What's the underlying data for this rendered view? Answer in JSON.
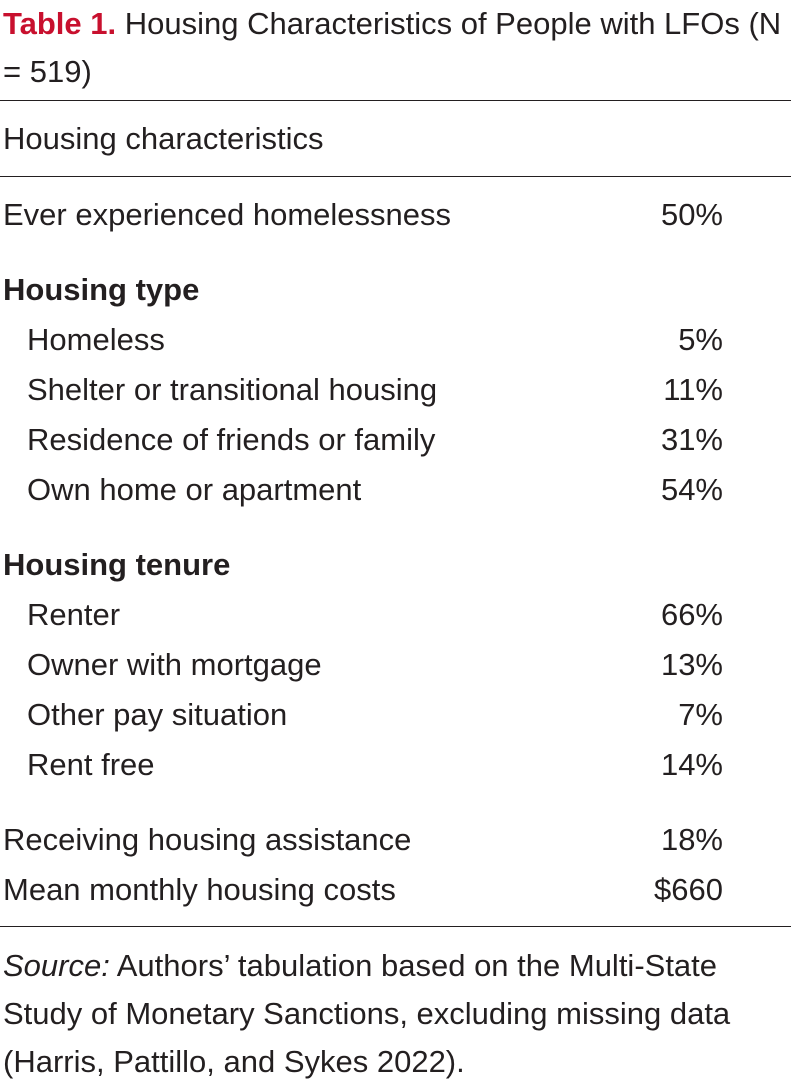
{
  "title": {
    "label": "Table 1.",
    "text": " Housing Characteristics of People with LFOs (N = 519)"
  },
  "table": {
    "header": "Housing characteristics",
    "rows": [
      {
        "label": "Ever experienced homelessness",
        "value": "50%"
      },
      {
        "label": "Housing type",
        "value": ""
      },
      {
        "label": "Homeless",
        "value": "5%"
      },
      {
        "label": "Shelter or transitional housing",
        "value": "11%"
      },
      {
        "label": "Residence of friends or family",
        "value": "31%"
      },
      {
        "label": "Own home or apartment",
        "value": "54%"
      },
      {
        "label": "Housing tenure",
        "value": ""
      },
      {
        "label": "Renter",
        "value": "66%"
      },
      {
        "label": "Owner with mortgage",
        "value": "13%"
      },
      {
        "label": "Other pay situation",
        "value": "7%"
      },
      {
        "label": "Rent free",
        "value": "14%"
      },
      {
        "label": "Receiving housing assistance",
        "value": "18%"
      },
      {
        "label": "Mean monthly housing costs",
        "value": "$660"
      }
    ]
  },
  "source": {
    "label": "Source:",
    "text": " Authors’ tabulation based on the Multi-State Study of Monetary Sanctions, excluding missing data (Harris, Pattillo, and Sykes 2022)."
  }
}
